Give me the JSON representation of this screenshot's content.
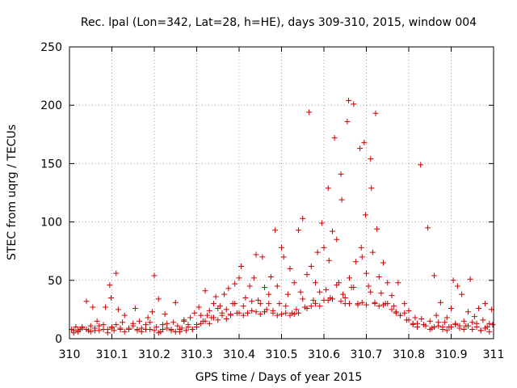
{
  "chart_data": {
    "type": "scatter",
    "title": "Rec. lpal (Lon=342, Lat=28, h=HE), days 309-310, 2015, window 004",
    "xlabel": "GPS time / Days of year 2015",
    "ylabel": "STEC from uqrg / TECUs",
    "xlim": [
      310,
      311
    ],
    "ylim": [
      0,
      250
    ],
    "xticks": [
      310,
      310.1,
      310.2,
      310.3,
      310.4,
      310.5,
      310.6,
      310.7,
      310.8,
      310.9,
      311
    ],
    "xtick_labels": [
      "310",
      "310.1",
      "310.2",
      "310.3",
      "310.4",
      "310.5",
      "310.6",
      "310.7",
      "310.8",
      "310.9",
      "311"
    ],
    "yticks": [
      0,
      50,
      100,
      150,
      200,
      250
    ],
    "ytick_labels": [
      "0",
      "50",
      "100",
      "150",
      "200",
      "250"
    ],
    "grid": true,
    "marker": "+",
    "color": "#cc0000",
    "points": [
      [
        310.005,
        8
      ],
      [
        310.01,
        7
      ],
      [
        310.015,
        10
      ],
      [
        310.02,
        6
      ],
      [
        310.025,
        8
      ],
      [
        310.03,
        9
      ],
      [
        310.04,
        32
      ],
      [
        310.045,
        7
      ],
      [
        310.05,
        11
      ],
      [
        310.055,
        27
      ],
      [
        310.06,
        9
      ],
      [
        310.065,
        15
      ],
      [
        310.07,
        7
      ],
      [
        310.08,
        12
      ],
      [
        310.085,
        27
      ],
      [
        310.09,
        8
      ],
      [
        310.095,
        46
      ],
      [
        310.098,
        35
      ],
      [
        310.1,
        10
      ],
      [
        310.105,
        7
      ],
      [
        310.11,
        56
      ],
      [
        310.115,
        25
      ],
      [
        310.12,
        9
      ],
      [
        310.125,
        14
      ],
      [
        310.13,
        20
      ],
      [
        310.14,
        8
      ],
      [
        310.15,
        11
      ],
      [
        310.155,
        26
      ],
      [
        310.16,
        7
      ],
      [
        310.165,
        15
      ],
      [
        310.17,
        9
      ],
      [
        310.18,
        12
      ],
      [
        310.185,
        18
      ],
      [
        310.19,
        8
      ],
      [
        310.195,
        23
      ],
      [
        310.2,
        54
      ],
      [
        310.205,
        10
      ],
      [
        310.21,
        34
      ],
      [
        310.215,
        6
      ],
      [
        310.22,
        12
      ],
      [
        310.225,
        21
      ],
      [
        310.23,
        9
      ],
      [
        310.24,
        7
      ],
      [
        310.245,
        14
      ],
      [
        310.25,
        31
      ],
      [
        310.255,
        11
      ],
      [
        310.26,
        6
      ],
      [
        310.265,
        9
      ],
      [
        310.27,
        16
      ],
      [
        310.275,
        7
      ],
      [
        310.28,
        12
      ],
      [
        310.285,
        18
      ],
      [
        310.29,
        8
      ],
      [
        310.295,
        22
      ],
      [
        310.3,
        10
      ],
      [
        310.305,
        27
      ],
      [
        310.31,
        13
      ],
      [
        310.315,
        15
      ],
      [
        310.32,
        41
      ],
      [
        310.325,
        20
      ],
      [
        310.33,
        24
      ],
      [
        310.335,
        18
      ],
      [
        310.34,
        30
      ],
      [
        310.345,
        36
      ],
      [
        310.35,
        16
      ],
      [
        310.355,
        28
      ],
      [
        310.36,
        22
      ],
      [
        310.365,
        38
      ],
      [
        310.37,
        25
      ],
      [
        310.375,
        43
      ],
      [
        310.38,
        20
      ],
      [
        310.385,
        30
      ],
      [
        310.39,
        47
      ],
      [
        310.395,
        22
      ],
      [
        310.4,
        52
      ],
      [
        310.405,
        62
      ],
      [
        310.41,
        28
      ],
      [
        310.415,
        35
      ],
      [
        310.42,
        22
      ],
      [
        310.425,
        45
      ],
      [
        310.43,
        24
      ],
      [
        310.435,
        52
      ],
      [
        310.44,
        72
      ],
      [
        310.445,
        33
      ],
      [
        310.45,
        30
      ],
      [
        310.455,
        70
      ],
      [
        310.46,
        44
      ],
      [
        310.465,
        25
      ],
      [
        310.47,
        38
      ],
      [
        310.475,
        53
      ],
      [
        310.48,
        24
      ],
      [
        310.485,
        93
      ],
      [
        310.49,
        45
      ],
      [
        310.495,
        30
      ],
      [
        310.5,
        78
      ],
      [
        310.505,
        70
      ],
      [
        310.51,
        22
      ],
      [
        310.515,
        38
      ],
      [
        310.52,
        60
      ],
      [
        310.525,
        22
      ],
      [
        310.53,
        48
      ],
      [
        310.535,
        25
      ],
      [
        310.54,
        93
      ],
      [
        310.545,
        40
      ],
      [
        310.55,
        103
      ],
      [
        310.555,
        27
      ],
      [
        310.56,
        55
      ],
      [
        310.565,
        194
      ],
      [
        310.57,
        62
      ],
      [
        310.575,
        33
      ],
      [
        310.58,
        48
      ],
      [
        310.585,
        74
      ],
      [
        310.59,
        28
      ],
      [
        310.595,
        99
      ],
      [
        310.6,
        78
      ],
      [
        310.605,
        42
      ],
      [
        310.61,
        129
      ],
      [
        310.612,
        67
      ],
      [
        310.615,
        35
      ],
      [
        310.62,
        92
      ],
      [
        310.625,
        172
      ],
      [
        310.63,
        85
      ],
      [
        310.635,
        48
      ],
      [
        310.64,
        141
      ],
      [
        310.642,
        119
      ],
      [
        310.645,
        38
      ],
      [
        310.65,
        30
      ],
      [
        310.655,
        186
      ],
      [
        310.658,
        204
      ],
      [
        310.66,
        52
      ],
      [
        310.665,
        44
      ],
      [
        310.67,
        201
      ],
      [
        310.675,
        66
      ],
      [
        310.68,
        30
      ],
      [
        310.685,
        163
      ],
      [
        310.688,
        78
      ],
      [
        310.69,
        70
      ],
      [
        310.695,
        168
      ],
      [
        310.698,
        106
      ],
      [
        310.7,
        56
      ],
      [
        310.705,
        45
      ],
      [
        310.71,
        154
      ],
      [
        310.712,
        129
      ],
      [
        310.715,
        74
      ],
      [
        310.72,
        31
      ],
      [
        310.722,
        193
      ],
      [
        310.725,
        94
      ],
      [
        310.73,
        53
      ],
      [
        310.735,
        39
      ],
      [
        310.74,
        65
      ],
      [
        310.745,
        30
      ],
      [
        310.75,
        48
      ],
      [
        310.76,
        37
      ],
      [
        310.765,
        28
      ],
      [
        310.77,
        23
      ],
      [
        310.775,
        48
      ],
      [
        310.78,
        20
      ],
      [
        310.79,
        30
      ],
      [
        310.795,
        16
      ],
      [
        310.8,
        24
      ],
      [
        310.81,
        13
      ],
      [
        310.815,
        18
      ],
      [
        310.82,
        10
      ],
      [
        310.828,
        149
      ],
      [
        310.835,
        12
      ],
      [
        310.845,
        95
      ],
      [
        310.85,
        15
      ],
      [
        310.855,
        9
      ],
      [
        310.86,
        54
      ],
      [
        310.865,
        20
      ],
      [
        310.87,
        11
      ],
      [
        310.875,
        31
      ],
      [
        310.88,
        8
      ],
      [
        310.885,
        14
      ],
      [
        310.89,
        18
      ],
      [
        310.895,
        10
      ],
      [
        310.9,
        26
      ],
      [
        310.905,
        50
      ],
      [
        310.91,
        12
      ],
      [
        310.915,
        45
      ],
      [
        310.92,
        9
      ],
      [
        310.925,
        38
      ],
      [
        310.93,
        15
      ],
      [
        310.935,
        11
      ],
      [
        310.94,
        23
      ],
      [
        310.945,
        51
      ],
      [
        310.95,
        8
      ],
      [
        310.955,
        19
      ],
      [
        310.96,
        13
      ],
      [
        310.965,
        26
      ],
      [
        310.97,
        7
      ],
      [
        310.975,
        16
      ],
      [
        310.98,
        30
      ],
      [
        310.985,
        10
      ],
      [
        310.99,
        6
      ],
      [
        310.995,
        25
      ],
      [
        310.998,
        12
      ],
      [
        310.02,
        7
      ],
      [
        310.04,
        8
      ],
      [
        310.06,
        7
      ],
      [
        310.08,
        8
      ],
      [
        310.1,
        9
      ],
      [
        310.12,
        8
      ],
      [
        310.14,
        9
      ],
      [
        310.16,
        8
      ],
      [
        310.18,
        8
      ],
      [
        310.2,
        7
      ],
      [
        310.22,
        8
      ],
      [
        310.24,
        8
      ],
      [
        310.26,
        8
      ],
      [
        310.28,
        10
      ],
      [
        310.3,
        12
      ],
      [
        310.32,
        15
      ],
      [
        310.34,
        18
      ],
      [
        310.36,
        20
      ],
      [
        310.38,
        21
      ],
      [
        310.4,
        22
      ],
      [
        310.42,
        22
      ],
      [
        310.44,
        23
      ],
      [
        310.46,
        23
      ],
      [
        310.48,
        22
      ],
      [
        310.5,
        21
      ],
      [
        310.52,
        20
      ],
      [
        310.54,
        22
      ],
      [
        310.56,
        26
      ],
      [
        310.58,
        30
      ],
      [
        310.6,
        33
      ],
      [
        310.62,
        34
      ],
      [
        310.64,
        32
      ],
      [
        310.66,
        30
      ],
      [
        310.68,
        29
      ],
      [
        310.7,
        29
      ],
      [
        310.72,
        30
      ],
      [
        310.74,
        29
      ],
      [
        310.76,
        25
      ],
      [
        310.78,
        20
      ],
      [
        310.8,
        16
      ],
      [
        310.82,
        13
      ],
      [
        310.84,
        11
      ],
      [
        310.86,
        10
      ],
      [
        310.88,
        10
      ],
      [
        310.9,
        10
      ],
      [
        310.92,
        11
      ],
      [
        310.94,
        11
      ],
      [
        310.96,
        10
      ],
      [
        310.98,
        9
      ],
      [
        310.03,
        10
      ],
      [
        310.07,
        11
      ],
      [
        310.11,
        12
      ],
      [
        310.15,
        13
      ],
      [
        310.19,
        14
      ],
      [
        310.23,
        13
      ],
      [
        310.27,
        15
      ],
      [
        310.31,
        20
      ],
      [
        310.35,
        26
      ],
      [
        310.39,
        30
      ],
      [
        310.43,
        32
      ],
      [
        310.47,
        30
      ],
      [
        310.51,
        28
      ],
      [
        310.55,
        34
      ],
      [
        310.59,
        40
      ],
      [
        310.63,
        46
      ],
      [
        310.67,
        44
      ],
      [
        310.71,
        40
      ],
      [
        310.75,
        30
      ],
      [
        310.79,
        22
      ],
      [
        310.83,
        17
      ],
      [
        310.87,
        14
      ],
      [
        310.91,
        13
      ],
      [
        310.95,
        14
      ],
      [
        310.99,
        13
      ],
      [
        310.01,
        5
      ],
      [
        310.05,
        6
      ],
      [
        310.09,
        5
      ],
      [
        310.13,
        6
      ],
      [
        310.17,
        6
      ],
      [
        310.21,
        5
      ],
      [
        310.25,
        6
      ],
      [
        310.29,
        8
      ],
      [
        310.33,
        13
      ],
      [
        310.37,
        17
      ],
      [
        310.41,
        20
      ],
      [
        310.45,
        21
      ],
      [
        310.49,
        20
      ],
      [
        310.53,
        21
      ],
      [
        310.57,
        28
      ],
      [
        310.61,
        33
      ],
      [
        310.65,
        35
      ],
      [
        310.69,
        31
      ],
      [
        310.73,
        28
      ],
      [
        310.77,
        22
      ],
      [
        310.81,
        12
      ],
      [
        310.85,
        8
      ],
      [
        310.89,
        7
      ],
      [
        310.93,
        8
      ],
      [
        310.97,
        7
      ]
    ]
  }
}
